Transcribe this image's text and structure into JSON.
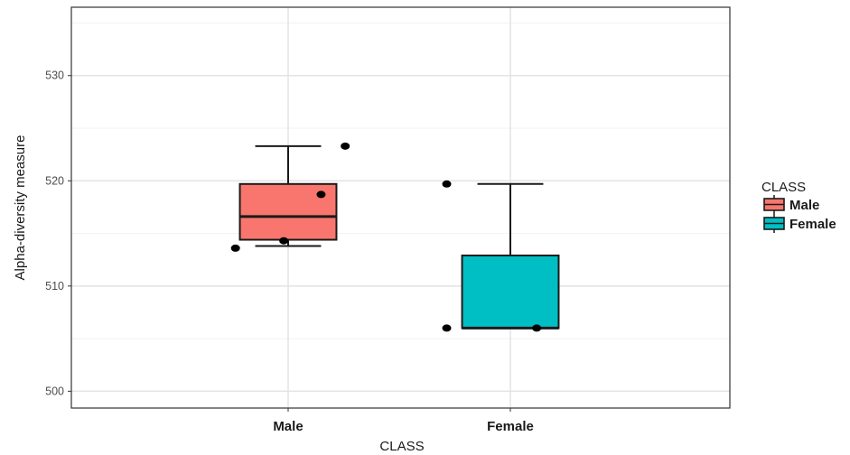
{
  "chart_data": {
    "type": "box",
    "xlabel": "CLASS",
    "ylabel": "Alpha-diversity measure",
    "categories": [
      "Male",
      "Female"
    ],
    "ylim": [
      498.4,
      536.5
    ],
    "yticks": [
      500,
      510,
      520,
      530
    ],
    "grid": true,
    "legend": {
      "title": "CLASS",
      "position": "right",
      "items": [
        "Male",
        "Female"
      ]
    },
    "colors": {
      "Male": "#f8766d",
      "Female": "#00bfc4"
    },
    "boxes": [
      {
        "name": "Male",
        "min": 513.8,
        "q1": 514.4,
        "median": 516.6,
        "q3": 519.7,
        "max": 523.3
      },
      {
        "name": "Female",
        "min": 506.0,
        "q1": 506.0,
        "median": 506.0,
        "q3": 512.9,
        "max": 519.7
      }
    ],
    "points": [
      {
        "category": "Male",
        "offset": -0.24,
        "y": 513.6
      },
      {
        "category": "Male",
        "offset": -0.02,
        "y": 514.3
      },
      {
        "category": "Male",
        "offset": 0.15,
        "y": 518.7
      },
      {
        "category": "Male",
        "offset": 0.26,
        "y": 523.3
      },
      {
        "category": "Female",
        "offset": -0.29,
        "y": 519.7
      },
      {
        "category": "Female",
        "offset": -0.29,
        "y": 506.0
      },
      {
        "category": "Female",
        "offset": 0.12,
        "y": 506.0
      }
    ]
  }
}
